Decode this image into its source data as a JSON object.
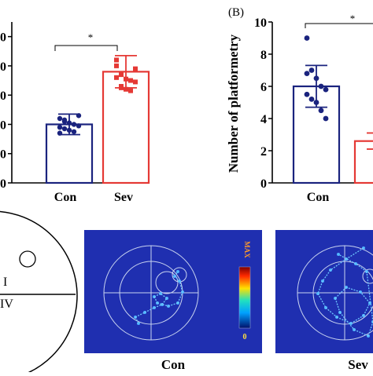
{
  "colors": {
    "con": "#1a237e",
    "sev": "#e53935",
    "heat_bg": "#1f2fb0",
    "heat_line": "#c9d4f0"
  },
  "chart_data": [
    {
      "type": "bar",
      "categories": [
        "Con",
        "Sev"
      ],
      "values": [
        2.0,
        3.8
      ],
      "errors": [
        0.35,
        0.55
      ],
      "ylim": [
        0,
        5.5
      ],
      "ytick_labels_visible": [
        "0",
        "0",
        "0",
        "0",
        "0",
        "0"
      ],
      "ytick_values": [
        0,
        1,
        2,
        3,
        4,
        5
      ],
      "significance": "*",
      "points": {
        "Con": [
          2.2,
          2.1,
          2.05,
          2.0,
          1.95,
          1.9,
          1.85,
          1.8,
          1.75,
          2.3,
          1.7,
          2.15
        ],
        "Sev": [
          4.0,
          3.7,
          3.55,
          3.5,
          3.45,
          4.2,
          3.3,
          3.2,
          3.15,
          3.9,
          3.6,
          3.25
        ]
      }
    },
    {
      "type": "bar",
      "panel_label": "(B)",
      "ylabel": "Number of platformetry",
      "categories": [
        "Con",
        "Sev"
      ],
      "values": [
        6.0,
        2.6
      ],
      "errors": [
        1.3,
        0.5
      ],
      "ylim": [
        0,
        10
      ],
      "ytick_values": [
        0,
        2,
        4,
        6,
        8,
        10
      ],
      "ytick_labels": [
        "0",
        "2",
        "4",
        "6",
        "8",
        "10"
      ],
      "significance": "*",
      "points": {
        "Con": [
          9.0,
          7.0,
          6.5,
          6.0,
          5.8,
          5.5,
          5.2,
          5.0,
          4.5,
          4.0,
          6.8
        ]
      }
    }
  ],
  "heatmap": {
    "scale_max": "MAX",
    "scale_min": "0",
    "labels": [
      "Con",
      "Sev"
    ]
  },
  "diagram": {
    "quadrants": [
      "I",
      "IV"
    ]
  }
}
